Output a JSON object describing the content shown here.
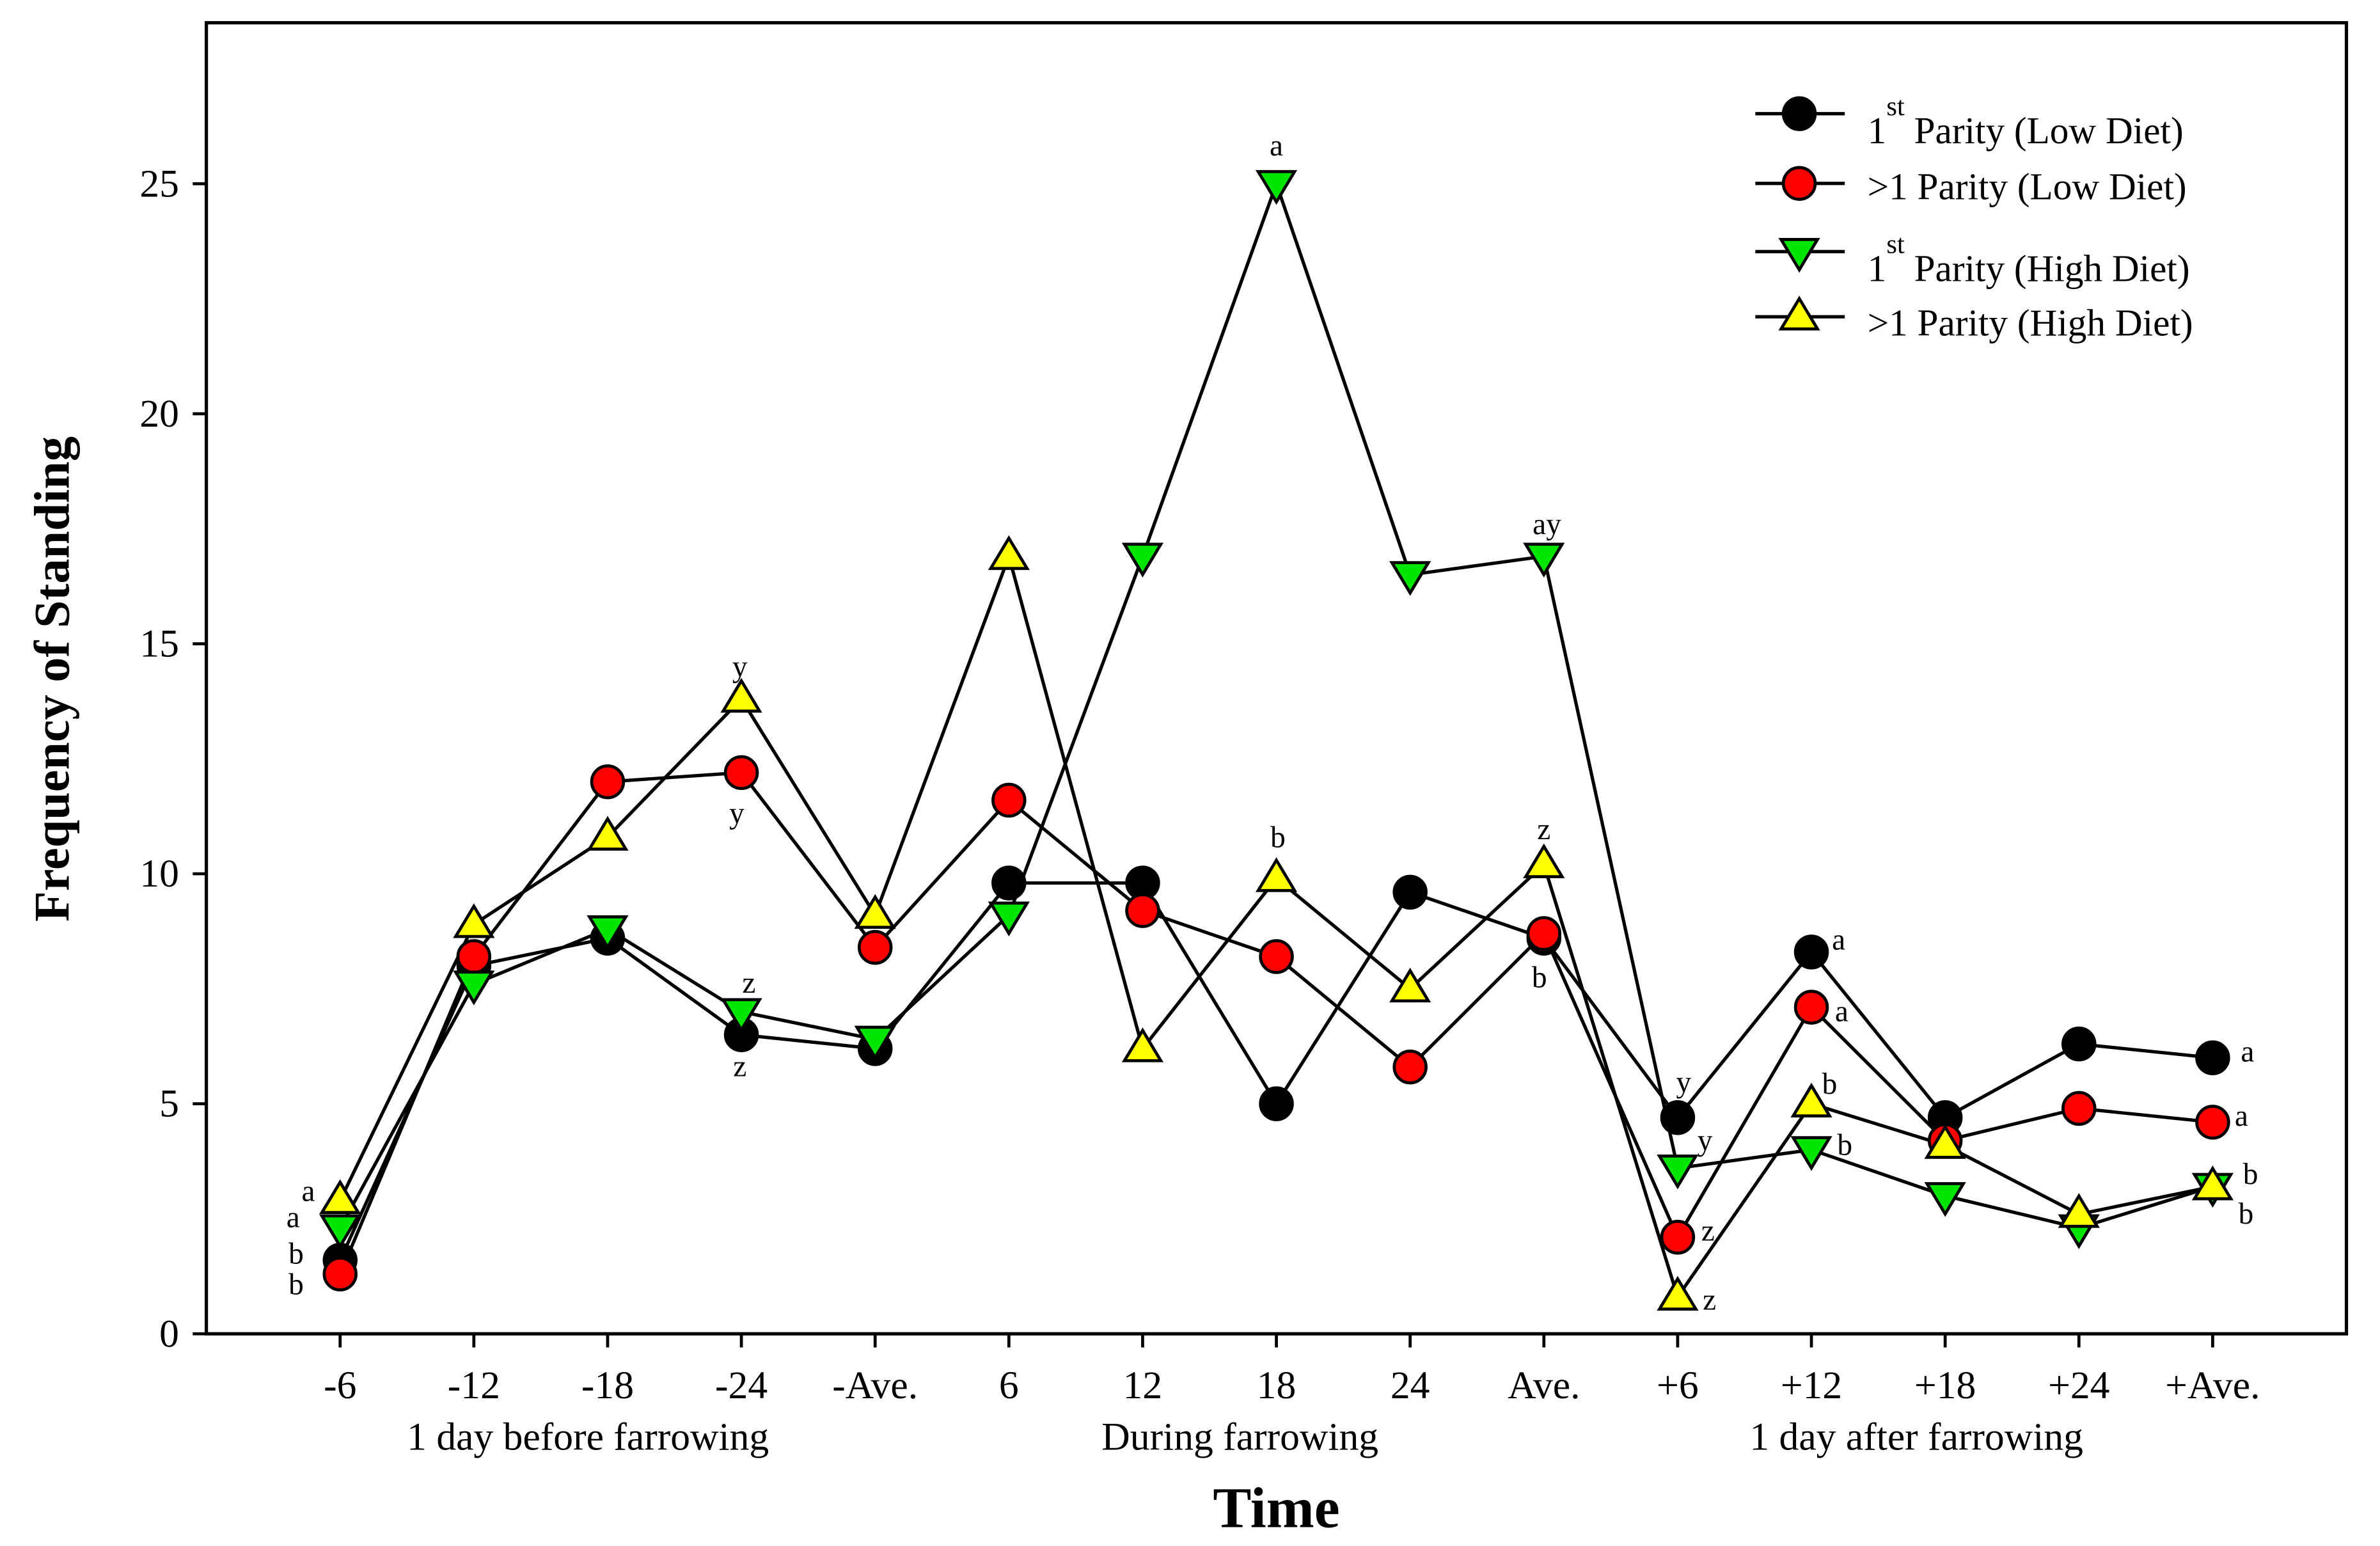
{
  "chart_data": {
    "type": "line",
    "title": "",
    "xlabel": "Time",
    "ylabel": "Frequency of Standing",
    "categories": [
      "-6",
      "-12",
      "-18",
      "-24",
      "-Ave.",
      "6",
      "12",
      "18",
      "24",
      "Ave.",
      "+6",
      "+12",
      "+18",
      "+24",
      "+Ave."
    ],
    "groups": [
      {
        "label": "1 day before farrowing",
        "from": 0,
        "to": 4
      },
      {
        "label": "During farrowing",
        "from": 5,
        "to": 9
      },
      {
        "label": "1 day after farrowing",
        "from": 10,
        "to": 14
      }
    ],
    "ylim": [
      0,
      28.5
    ],
    "y_ticks": [
      0,
      5,
      10,
      15,
      20,
      25
    ],
    "grid": false,
    "legend_position": "top-right",
    "series": [
      {
        "label": {
          "main": "1",
          "sup": "st",
          "rest": " Parity (Low Diet)"
        },
        "marker": "circle",
        "color": "#000000",
        "values": [
          1.6,
          8.0,
          8.6,
          6.5,
          6.2,
          9.8,
          9.8,
          5.0,
          9.6,
          8.6,
          4.7,
          8.3,
          4.7,
          6.3,
          6.0
        ]
      },
      {
        "label": {
          "main": ">1 Parity (Low Diet)"
        },
        "marker": "circle",
        "color": "#ff0000",
        "values": [
          1.3,
          8.2,
          12.0,
          12.2,
          8.4,
          11.6,
          9.2,
          8.2,
          5.8,
          8.7,
          2.1,
          7.1,
          4.2,
          4.9,
          4.6
        ]
      },
      {
        "label": {
          "main": "1",
          "sup": "st",
          "rest": " Parity (High Diet)"
        },
        "marker": "triangle-down",
        "color": "#00e600",
        "values": [
          2.3,
          7.6,
          8.8,
          7.0,
          6.4,
          9.1,
          16.9,
          25.0,
          16.5,
          16.9,
          3.6,
          4.0,
          3.0,
          2.3,
          3.2
        ]
      },
      {
        "label": {
          "main": ">1 Parity (High Diet)"
        },
        "marker": "triangle-up",
        "color": "#ffff00",
        "values": [
          2.9,
          8.9,
          10.8,
          13.8,
          9.1,
          16.9,
          6.2,
          9.9,
          7.5,
          10.2,
          0.8,
          5.0,
          4.1,
          2.6,
          3.2
        ]
      }
    ],
    "annotations": [
      {
        "text": "a",
        "series": 3,
        "category": 0
      },
      {
        "text": "a",
        "series": 2,
        "category": 0
      },
      {
        "text": "b",
        "series": 0,
        "category": 0
      },
      {
        "text": "b",
        "series": 1,
        "category": 0
      },
      {
        "text": "y",
        "series": 3,
        "category": 3
      },
      {
        "text": "y",
        "series": 1,
        "category": 3
      },
      {
        "text": "z",
        "series": 2,
        "category": 3
      },
      {
        "text": "z",
        "series": 0,
        "category": 3
      },
      {
        "text": "a",
        "series": 2,
        "category": 7
      },
      {
        "text": "b",
        "series": 3,
        "category": 7
      },
      {
        "text": "ay",
        "series": 2,
        "category": 9
      },
      {
        "text": "z",
        "series": 3,
        "category": 9
      },
      {
        "text": "b",
        "series": 0,
        "category": 9
      },
      {
        "text": "y",
        "series": 0,
        "category": 10
      },
      {
        "text": "y",
        "series": 2,
        "category": 10
      },
      {
        "text": "z",
        "series": 1,
        "category": 10
      },
      {
        "text": "z",
        "series": 3,
        "category": 10
      },
      {
        "text": "a",
        "series": 0,
        "category": 11
      },
      {
        "text": "a",
        "series": 1,
        "category": 11
      },
      {
        "text": "b",
        "series": 3,
        "category": 11
      },
      {
        "text": "b",
        "series": 2,
        "category": 11
      },
      {
        "text": "a",
        "series": 0,
        "category": 14
      },
      {
        "text": "a",
        "series": 1,
        "category": 14
      },
      {
        "text": "b",
        "series": 2,
        "category": 14
      },
      {
        "text": "b",
        "series": 3,
        "category": 14
      }
    ]
  }
}
